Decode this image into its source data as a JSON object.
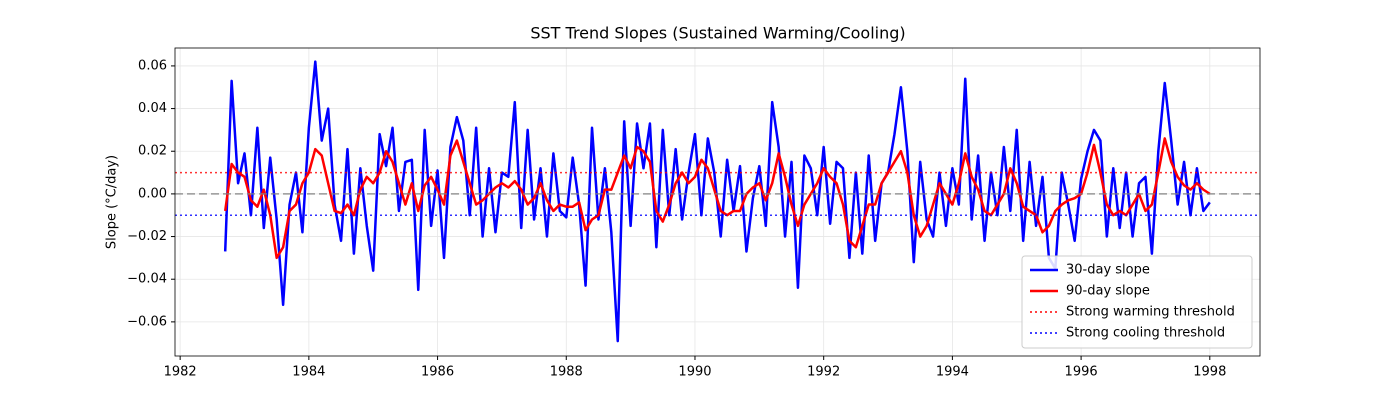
{
  "chart_data": {
    "type": "line",
    "title": "SST Trend Slopes (Sustained Warming/Cooling)",
    "y_label": "Slope (°C/day)",
    "x": [
      1982.7,
      1982.8,
      1982.9,
      1983.0,
      1983.1,
      1983.2,
      1983.3,
      1983.4,
      1983.5,
      1983.6,
      1983.7,
      1983.8,
      1983.9,
      1984.0,
      1984.1,
      1984.2,
      1984.3,
      1984.4,
      1984.5,
      1984.6,
      1984.7,
      1984.8,
      1984.9,
      1985.0,
      1985.1,
      1985.2,
      1985.3,
      1985.4,
      1985.5,
      1985.6,
      1985.7,
      1985.8,
      1985.9,
      1986.0,
      1986.1,
      1986.2,
      1986.3,
      1986.4,
      1986.5,
      1986.6,
      1986.7,
      1986.8,
      1986.9,
      1987.0,
      1987.1,
      1987.2,
      1987.3,
      1987.4,
      1987.5,
      1987.6,
      1987.7,
      1987.8,
      1987.9,
      1988.0,
      1988.1,
      1988.2,
      1988.3,
      1988.4,
      1988.5,
      1988.6,
      1988.7,
      1988.8,
      1988.9,
      1989.0,
      1989.1,
      1989.2,
      1989.3,
      1989.4,
      1989.5,
      1989.6,
      1989.7,
      1989.8,
      1989.9,
      1990.0,
      1990.1,
      1990.2,
      1990.3,
      1990.4,
      1990.5,
      1990.6,
      1990.7,
      1990.8,
      1990.9,
      1991.0,
      1991.1,
      1991.2,
      1991.3,
      1991.4,
      1991.5,
      1991.6,
      1991.7,
      1991.8,
      1991.9,
      1992.0,
      1992.1,
      1992.2,
      1992.3,
      1992.4,
      1992.5,
      1992.6,
      1992.7,
      1992.8,
      1992.9,
      1993.0,
      1993.1,
      1993.2,
      1993.3,
      1993.4,
      1993.5,
      1993.6,
      1993.7,
      1993.8,
      1993.9,
      1994.0,
      1994.1,
      1994.2,
      1994.3,
      1994.4,
      1994.5,
      1994.6,
      1994.7,
      1994.8,
      1994.9,
      1995.0,
      1995.1,
      1995.2,
      1995.3,
      1995.4,
      1995.5,
      1995.6,
      1995.7,
      1995.8,
      1995.9,
      1996.0,
      1996.1,
      1996.2,
      1996.3,
      1996.4,
      1996.5,
      1996.6,
      1996.7,
      1996.8,
      1996.9,
      1997.0,
      1997.1,
      1997.2,
      1997.3,
      1997.4,
      1997.5,
      1997.6,
      1997.7,
      1997.8,
      1997.9,
      1998.0
    ],
    "series": [
      {
        "name": "30-day slope",
        "color": "#0000ff",
        "width": 2.5,
        "values": [
          -0.027,
          0.053,
          0.005,
          0.019,
          -0.01,
          0.031,
          -0.016,
          0.017,
          -0.012,
          -0.052,
          -0.005,
          0.01,
          -0.018,
          0.031,
          0.062,
          0.025,
          0.04,
          -0.005,
          -0.022,
          0.021,
          -0.028,
          0.012,
          -0.015,
          -0.036,
          0.028,
          0.013,
          0.031,
          -0.008,
          0.015,
          0.016,
          -0.045,
          0.03,
          -0.015,
          0.011,
          -0.03,
          0.022,
          0.036,
          0.025,
          -0.01,
          0.031,
          -0.02,
          0.012,
          -0.018,
          0.01,
          0.008,
          0.043,
          -0.016,
          0.03,
          -0.012,
          0.012,
          -0.02,
          0.019,
          -0.008,
          -0.011,
          0.017,
          -0.005,
          -0.043,
          0.031,
          -0.012,
          0.012,
          -0.018,
          -0.069,
          0.034,
          -0.015,
          0.033,
          0.012,
          0.033,
          -0.025,
          0.03,
          -0.01,
          0.021,
          -0.012,
          0.01,
          0.028,
          -0.01,
          0.026,
          0.01,
          -0.02,
          0.016,
          -0.008,
          0.013,
          -0.027,
          -0.002,
          0.013,
          -0.015,
          0.043,
          0.022,
          -0.02,
          0.015,
          -0.044,
          0.018,
          0.012,
          -0.01,
          0.022,
          -0.014,
          0.015,
          0.012,
          -0.03,
          0.01,
          -0.028,
          0.018,
          -0.022,
          0.005,
          0.01,
          0.028,
          0.05,
          0.02,
          -0.032,
          0.015,
          -0.012,
          -0.02,
          0.01,
          -0.015,
          0.012,
          -0.005,
          0.054,
          -0.012,
          0.018,
          -0.022,
          0.01,
          -0.01,
          0.022,
          -0.008,
          0.03,
          -0.022,
          0.015,
          -0.015,
          0.008,
          -0.03,
          -0.035,
          0.01,
          -0.005,
          -0.022,
          0.007,
          0.02,
          0.03,
          0.025,
          -0.02,
          0.012,
          -0.016,
          0.01,
          -0.02,
          0.005,
          0.008,
          -0.028,
          0.02,
          0.052,
          0.025,
          -0.005,
          0.015,
          -0.01,
          0.012,
          -0.008,
          -0.004
        ]
      },
      {
        "name": "90-day slope",
        "color": "#ff0000",
        "width": 2.5,
        "values": [
          -0.008,
          0.014,
          0.01,
          0.008,
          -0.003,
          -0.006,
          0.002,
          -0.01,
          -0.03,
          -0.025,
          -0.008,
          -0.005,
          0.005,
          0.01,
          0.021,
          0.018,
          0.005,
          -0.008,
          -0.009,
          -0.005,
          -0.01,
          0.002,
          0.008,
          0.005,
          0.01,
          0.02,
          0.015,
          0.005,
          -0.005,
          0.005,
          -0.008,
          0.004,
          0.008,
          0.002,
          -0.005,
          0.018,
          0.025,
          0.015,
          0.005,
          -0.005,
          -0.003,
          0.0,
          0.003,
          0.005,
          0.003,
          0.006,
          0.002,
          -0.005,
          -0.002,
          0.005,
          -0.003,
          -0.008,
          -0.005,
          -0.006,
          -0.006,
          -0.004,
          -0.017,
          -0.012,
          -0.01,
          0.002,
          0.002,
          0.01,
          0.018,
          0.012,
          0.022,
          0.02,
          0.015,
          -0.008,
          -0.013,
          -0.005,
          0.005,
          0.01,
          0.005,
          0.008,
          0.016,
          0.012,
          0.002,
          -0.008,
          -0.01,
          -0.008,
          -0.008,
          0.0,
          0.003,
          0.005,
          -0.003,
          0.005,
          0.019,
          0.008,
          -0.005,
          -0.015,
          -0.005,
          0.0,
          0.005,
          0.012,
          0.008,
          0.005,
          -0.005,
          -0.022,
          -0.025,
          -0.015,
          -0.005,
          -0.005,
          0.005,
          0.01,
          0.015,
          0.02,
          0.01,
          -0.01,
          -0.02,
          -0.015,
          -0.005,
          0.005,
          0.0,
          -0.005,
          0.005,
          0.019,
          0.008,
          0.002,
          -0.008,
          -0.01,
          -0.005,
          0.0,
          0.012,
          0.005,
          -0.006,
          -0.008,
          -0.01,
          -0.018,
          -0.015,
          -0.008,
          -0.005,
          -0.003,
          -0.002,
          0.0,
          0.01,
          0.023,
          0.01,
          -0.005,
          -0.01,
          -0.008,
          -0.01,
          -0.005,
          0.0,
          -0.008,
          -0.005,
          0.01,
          0.026,
          0.015,
          0.008,
          0.004,
          0.002,
          0.005,
          0.002,
          0.0
        ]
      }
    ],
    "hlines": [
      {
        "value": 0,
        "color": "#808080",
        "style": "dashed"
      },
      {
        "name": "Strong warming threshold",
        "value": 0.01,
        "color": "#ff0000",
        "style": "dotted"
      },
      {
        "name": "Strong cooling threshold",
        "value": -0.01,
        "color": "#0000ff",
        "style": "dotted"
      }
    ],
    "xlim": [
      1981.92,
      1998.78
    ],
    "ylim": [
      -0.076,
      0.0684
    ],
    "xticks": [
      1982,
      1984,
      1986,
      1988,
      1990,
      1992,
      1994,
      1996,
      1998
    ],
    "yticks": [
      {
        "value": -0.06,
        "label": "−0.06"
      },
      {
        "value": -0.04,
        "label": "−0.04"
      },
      {
        "value": -0.02,
        "label": "−0.02"
      },
      {
        "value": 0,
        "label": "0.00"
      },
      {
        "value": 0.02,
        "label": "0.02"
      },
      {
        "value": 0.04,
        "label": "0.04"
      },
      {
        "value": 0.06,
        "label": "0.06"
      }
    ],
    "grid": true,
    "legend": "lower right"
  }
}
